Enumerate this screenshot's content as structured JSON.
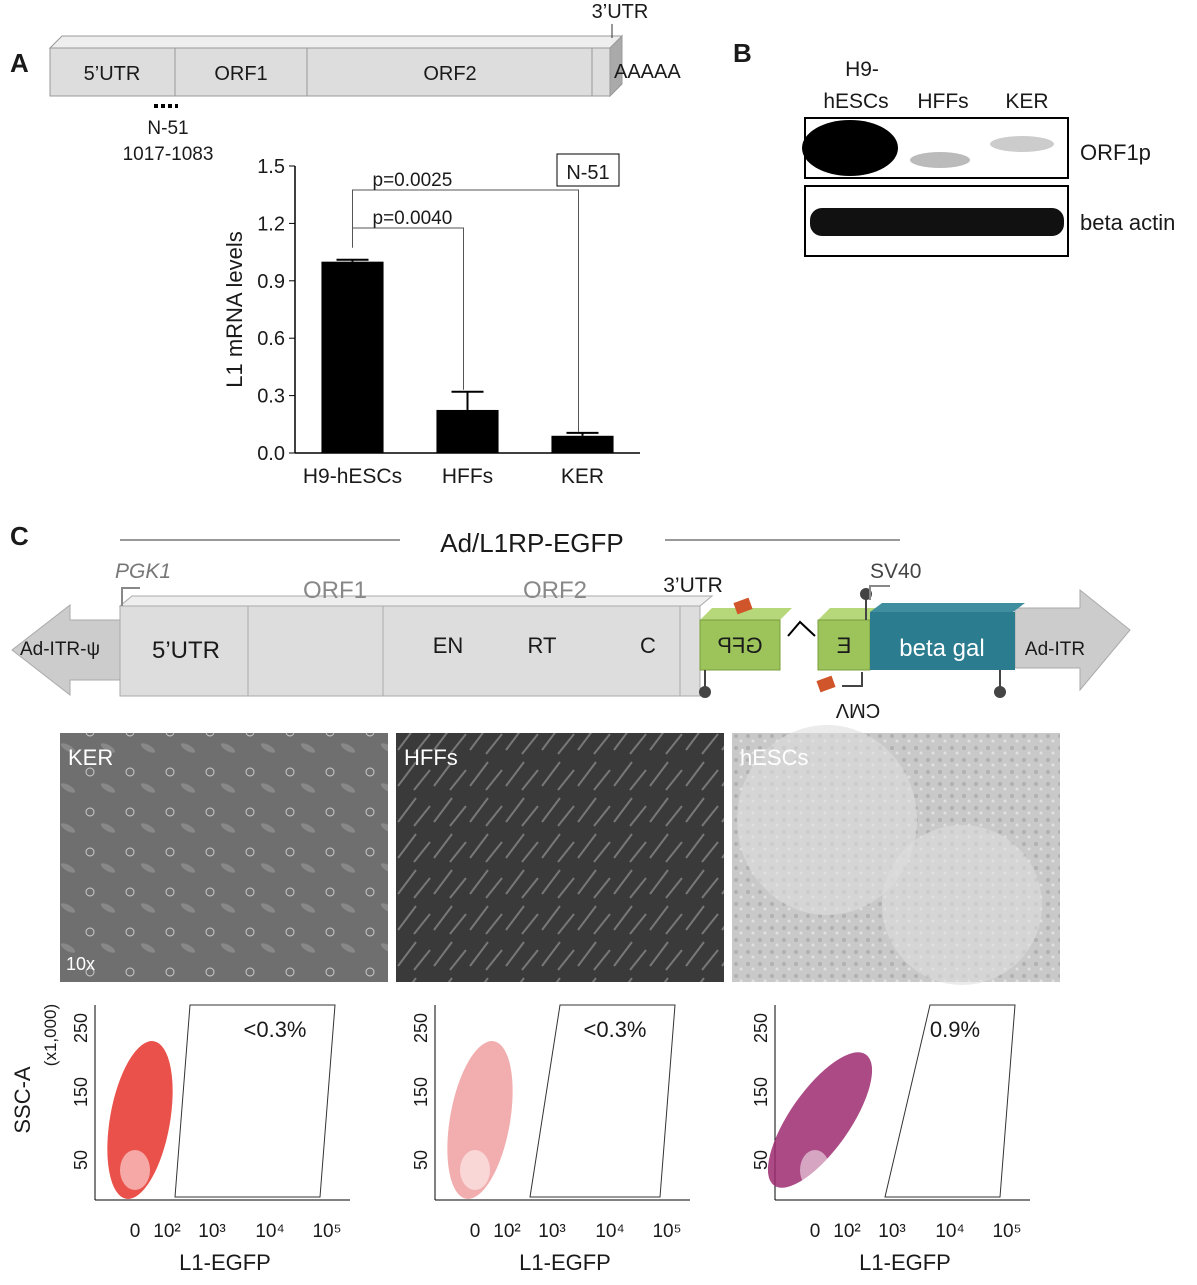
{
  "panel_labels": [
    "A",
    "B",
    "C"
  ],
  "panel_a_diagram": {
    "segments": [
      "5’UTR",
      "ORF1",
      "ORF2"
    ],
    "utr3": "3’UTR",
    "polya": "AAAAA",
    "probe": "N-51",
    "probe_range": "1017-1083"
  },
  "chart_data": {
    "type": "bar",
    "y_label": "L1 mRNA levels",
    "categories": [
      "H9-hESCs",
      "HFFs",
      "KER"
    ],
    "values": [
      1.0,
      0.225,
      0.09
    ],
    "errors": [
      0.01,
      0.095,
      0.015
    ],
    "color": "#000000",
    "ylim": [
      0,
      1.5
    ],
    "yticks": [
      {
        "value": 0,
        "label": "0.0"
      },
      0.3,
      0.6,
      0.9,
      1.2,
      1.5
    ],
    "annotations": [
      "p=0.0025",
      "p=0.0040"
    ],
    "inset_label": "N-51"
  },
  "panel_b": {
    "lane_labels": [
      [
        "H9-",
        "hESCs"
      ],
      [
        "HFFs"
      ],
      [
        "KER"
      ]
    ],
    "rows": [
      "ORF1p",
      "beta actin"
    ]
  },
  "panel_c_diagram": {
    "title": "Ad/L1RP-EGFP",
    "promoter": "PGK1",
    "orf1": "ORF1",
    "orf2": "ORF2",
    "utr3": "3’UTR",
    "sv40": "SV40",
    "itr_left": "Ad-ITR-ψ",
    "utr5": "5’UTR",
    "domains": [
      "EN",
      "RT",
      "C"
    ],
    "gfp": "GFP",
    "e": "E",
    "beta_gal": "beta gal",
    "itr_right": "Ad-ITR",
    "cmv": "CMV"
  },
  "micrographs": {
    "labels": [
      "KER",
      "HFFs",
      "hESCs"
    ],
    "magnification": "10x"
  },
  "flow_plots": {
    "y_label": "SSC-A",
    "y_unit": "(x1,000)",
    "y_ticks": [
      "250",
      "150",
      "50"
    ],
    "x_label": "L1-EGFP",
    "x_ticks": [
      "0",
      "10²",
      "10³",
      "10⁴",
      "10⁵"
    ],
    "gate_percentages": [
      "<0.3%",
      "<0.3%",
      "0.9%"
    ]
  }
}
